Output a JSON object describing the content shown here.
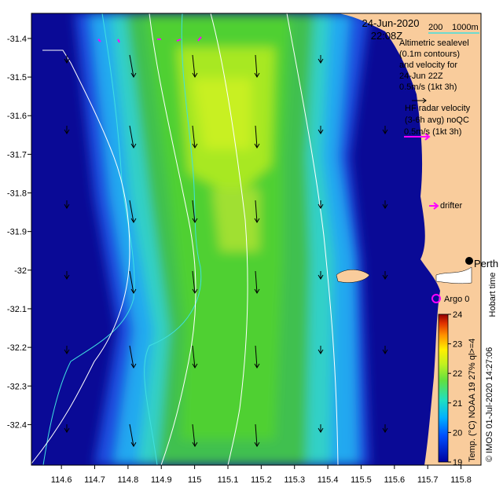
{
  "header": {
    "date": "24-Jun-2020",
    "time": "22:08Z"
  },
  "bathymetry": {
    "label_200": "200",
    "label_1000": "1000m"
  },
  "legend": {
    "altimetry_lines": [
      "Altimetric sealevel",
      "(0.1m contours)",
      "and velocity for",
      "24-Jun 22Z",
      "0.5m/s (1kt 3h)"
    ],
    "hf_lines": [
      "HF radar velocity",
      "(3-6h avg) noQC",
      "0.5m/s (1kt 3h)"
    ],
    "drifter": "drifter",
    "argo": "Argo 0",
    "city": "Perth",
    "hobart": "Hobart time",
    "credit": "© IMOS 01-Jul-2020 14:27:06",
    "colorbar_title": "Temp. (°C) NOAA 19 27% ql>=4"
  },
  "colors": {
    "land": "#f9cc9c",
    "sea_deep": "#0a0a96",
    "vector": "#000000",
    "hf": "#ff00ff",
    "contour": "#ffffff",
    "isobath": "#40e0e0"
  },
  "axes": {
    "x_ticks": [
      "114.6",
      "114.7",
      "114.8",
      "114.9",
      "115",
      "115.1",
      "115.2",
      "115.3",
      "115.4",
      "115.5",
      "115.6",
      "115.7",
      "115.8"
    ],
    "y_ticks": [
      "-31.4",
      "-31.5",
      "-31.6",
      "-31.7",
      "-31.8",
      "-31.9",
      "-32",
      "-32.1",
      "-32.2",
      "-32.3",
      "-32.4"
    ],
    "lon_range": [
      114.51,
      115.86
    ],
    "lat_range": [
      -32.505,
      -31.335
    ]
  },
  "colorbar": {
    "ticks": [
      "19",
      "20",
      "21",
      "22",
      "23",
      "24"
    ],
    "range": [
      19,
      24
    ]
  }
}
